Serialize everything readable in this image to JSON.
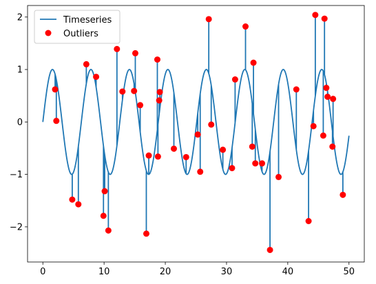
{
  "chart_data": {
    "type": "line",
    "title": "",
    "xlabel": "",
    "ylabel": "",
    "xlim": [
      -2.5,
      52.5
    ],
    "ylim": [
      -2.67,
      2.22
    ],
    "xticks": [
      0,
      10,
      20,
      30,
      40,
      50
    ],
    "yticks": [
      -2,
      -1,
      0,
      1,
      2
    ],
    "xtick_labels": [
      "0",
      "10",
      "20",
      "30",
      "40",
      "50"
    ],
    "ytick_labels": [
      "−2",
      "−1",
      "0",
      "1",
      "2"
    ],
    "grid": false,
    "legend_position": "upper-left",
    "series": [
      {
        "name": "Timeseries",
        "kind": "line",
        "color": "#1f77b4",
        "base_function": "sin",
        "x_range": [
          0,
          50
        ],
        "spikes": [
          [
            2.0,
            0.62
          ],
          [
            2.2,
            0.02
          ],
          [
            4.8,
            -1.48
          ],
          [
            5.8,
            -1.57
          ],
          [
            7.1,
            1.1
          ],
          [
            8.7,
            0.86
          ],
          [
            9.9,
            -1.79
          ],
          [
            10.1,
            -1.32
          ],
          [
            10.7,
            -2.07
          ],
          [
            12.1,
            1.39
          ],
          [
            13.0,
            0.58
          ],
          [
            14.9,
            0.59
          ],
          [
            15.1,
            1.31
          ],
          [
            15.9,
            0.32
          ],
          [
            16.9,
            -2.13
          ],
          [
            17.3,
            -0.64
          ],
          [
            18.7,
            1.19
          ],
          [
            18.8,
            -0.66
          ],
          [
            19.0,
            0.41
          ],
          [
            19.1,
            0.57
          ],
          [
            21.4,
            -0.51
          ],
          [
            23.4,
            -0.67
          ],
          [
            25.3,
            -0.24
          ],
          [
            25.7,
            -0.95
          ],
          [
            27.1,
            1.96
          ],
          [
            27.5,
            -0.05
          ],
          [
            29.4,
            -0.53
          ],
          [
            30.9,
            -0.88
          ],
          [
            31.4,
            0.81
          ],
          [
            33.1,
            1.82
          ],
          [
            34.2,
            -0.47
          ],
          [
            34.4,
            1.13
          ],
          [
            34.7,
            -0.79
          ],
          [
            35.8,
            -0.79
          ],
          [
            37.1,
            -2.44
          ],
          [
            38.5,
            -1.05
          ],
          [
            41.4,
            0.62
          ],
          [
            43.4,
            -1.89
          ],
          [
            44.2,
            -0.08
          ],
          [
            44.5,
            2.04
          ],
          [
            45.8,
            -0.26
          ],
          [
            46.0,
            1.97
          ],
          [
            46.3,
            0.65
          ],
          [
            46.5,
            0.48
          ],
          [
            47.3,
            -0.47
          ],
          [
            47.4,
            0.44
          ],
          [
            49.0,
            -1.39
          ]
        ]
      },
      {
        "name": "Outliers",
        "kind": "scatter",
        "color": "#ff0000",
        "points": [
          [
            2.0,
            0.62
          ],
          [
            2.2,
            0.02
          ],
          [
            4.8,
            -1.48
          ],
          [
            5.8,
            -1.57
          ],
          [
            7.1,
            1.1
          ],
          [
            8.7,
            0.86
          ],
          [
            9.9,
            -1.79
          ],
          [
            10.1,
            -1.32
          ],
          [
            10.7,
            -2.07
          ],
          [
            12.1,
            1.39
          ],
          [
            13.0,
            0.58
          ],
          [
            14.9,
            0.59
          ],
          [
            15.1,
            1.31
          ],
          [
            15.9,
            0.32
          ],
          [
            16.9,
            -2.13
          ],
          [
            17.3,
            -0.64
          ],
          [
            18.7,
            1.19
          ],
          [
            18.8,
            -0.66
          ],
          [
            19.0,
            0.41
          ],
          [
            19.1,
            0.57
          ],
          [
            21.4,
            -0.51
          ],
          [
            23.4,
            -0.67
          ],
          [
            25.3,
            -0.24
          ],
          [
            25.7,
            -0.95
          ],
          [
            27.1,
            1.96
          ],
          [
            27.5,
            -0.05
          ],
          [
            29.4,
            -0.53
          ],
          [
            30.9,
            -0.88
          ],
          [
            31.4,
            0.81
          ],
          [
            33.1,
            1.82
          ],
          [
            34.2,
            -0.47
          ],
          [
            34.4,
            1.13
          ],
          [
            34.7,
            -0.79
          ],
          [
            35.8,
            -0.79
          ],
          [
            37.1,
            -2.44
          ],
          [
            38.5,
            -1.05
          ],
          [
            41.4,
            0.62
          ],
          [
            43.4,
            -1.89
          ],
          [
            44.2,
            -0.08
          ],
          [
            44.5,
            2.04
          ],
          [
            45.8,
            -0.26
          ],
          [
            46.0,
            1.97
          ],
          [
            46.3,
            0.65
          ],
          [
            46.5,
            0.48
          ],
          [
            47.3,
            -0.47
          ],
          [
            47.4,
            0.44
          ],
          [
            49.0,
            -1.39
          ]
        ]
      }
    ]
  }
}
